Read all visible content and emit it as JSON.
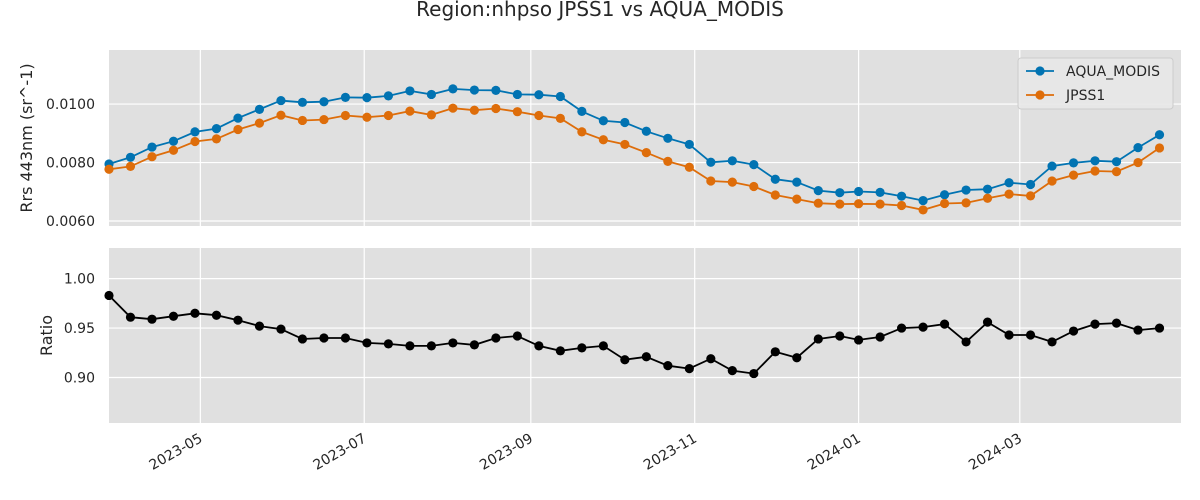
{
  "chart_data": [
    {
      "type": "line",
      "title": "Region:nhpso JPSS1 vs AQUA_MODIS",
      "ylabel": "Rrs 443nm (sr^-1)",
      "xlabel": "",
      "ylim": [
        0.00583,
        0.01185
      ],
      "yticks": [
        "0.0060",
        "0.0080",
        "0.0100"
      ],
      "xlim": [
        "2023-03-28",
        "2024-04-30"
      ],
      "xticks": [
        "2023-05",
        "2023-07",
        "2023-09",
        "2023-11",
        "2024-01",
        "2024-03"
      ],
      "grid": true,
      "legend": "top-right",
      "x": [
        "2023-03-28",
        "2023-04-05",
        "2023-04-13",
        "2023-04-21",
        "2023-04-29",
        "2023-05-07",
        "2023-05-15",
        "2023-05-23",
        "2023-05-31",
        "2023-06-08",
        "2023-06-16",
        "2023-06-24",
        "2023-07-02",
        "2023-07-10",
        "2023-07-18",
        "2023-07-26",
        "2023-08-03",
        "2023-08-11",
        "2023-08-19",
        "2023-08-27",
        "2023-09-04",
        "2023-09-12",
        "2023-09-20",
        "2023-09-28",
        "2023-10-06",
        "2023-10-14",
        "2023-10-22",
        "2023-10-30",
        "2023-11-07",
        "2023-11-15",
        "2023-11-23",
        "2023-12-01",
        "2023-12-09",
        "2023-12-17",
        "2023-12-25",
        "2024-01-01",
        "2024-01-09",
        "2024-01-17",
        "2024-01-25",
        "2024-02-02",
        "2024-02-10",
        "2024-02-18",
        "2024-02-26",
        "2024-03-05",
        "2024-03-13",
        "2024-03-21",
        "2024-03-29",
        "2024-04-06",
        "2024-04-14",
        "2024-04-22"
      ],
      "series": [
        {
          "name": "AQUA_MODIS",
          "color": "#0173b2",
          "values": [
            0.00795,
            0.00818,
            0.00853,
            0.00873,
            0.00905,
            0.00916,
            0.00952,
            0.00982,
            0.01012,
            0.01006,
            0.01008,
            0.01023,
            0.01022,
            0.01028,
            0.01045,
            0.01033,
            0.01052,
            0.01048,
            0.01047,
            0.01033,
            0.01032,
            0.01026,
            0.00975,
            0.00943,
            0.00937,
            0.00907,
            0.00883,
            0.00862,
            0.00801,
            0.00806,
            0.00793,
            0.00743,
            0.00733,
            0.00704,
            0.00697,
            0.00701,
            0.00698,
            0.00685,
            0.0067,
            0.0069,
            0.00706,
            0.00709,
            0.00731,
            0.00725,
            0.00788,
            0.00799,
            0.00806,
            0.00803,
            0.00851,
            0.00895
          ]
        },
        {
          "name": "JPSS1",
          "color": "#de6d0a",
          "values": [
            0.00777,
            0.00787,
            0.0082,
            0.00842,
            0.00872,
            0.00881,
            0.00913,
            0.00935,
            0.00962,
            0.00944,
            0.00947,
            0.00961,
            0.00955,
            0.00961,
            0.00976,
            0.00963,
            0.00986,
            0.00979,
            0.00985,
            0.00974,
            0.00961,
            0.00951,
            0.00905,
            0.00878,
            0.00862,
            0.00834,
            0.00804,
            0.00784,
            0.00737,
            0.00733,
            0.00718,
            0.00689,
            0.00675,
            0.00661,
            0.00658,
            0.00659,
            0.00658,
            0.00653,
            0.00638,
            0.0066,
            0.00662,
            0.00678,
            0.00692,
            0.00686,
            0.00737,
            0.00757,
            0.00771,
            0.00769,
            0.008,
            0.0085
          ]
        }
      ]
    },
    {
      "type": "line",
      "title": "",
      "ylabel": "Ratio",
      "xlabel": "",
      "ylim": [
        0.854,
        1.031
      ],
      "yticks": [
        "0.90",
        "0.95",
        "1.00"
      ],
      "xlim": [
        "2023-03-28",
        "2024-04-30"
      ],
      "xticks": [
        "2023-05",
        "2023-07",
        "2023-09",
        "2023-11",
        "2024-01",
        "2024-03"
      ],
      "grid": true,
      "x": [
        "2023-03-28",
        "2023-04-05",
        "2023-04-13",
        "2023-04-21",
        "2023-04-29",
        "2023-05-07",
        "2023-05-15",
        "2023-05-23",
        "2023-05-31",
        "2023-06-08",
        "2023-06-16",
        "2023-06-24",
        "2023-07-02",
        "2023-07-10",
        "2023-07-18",
        "2023-07-26",
        "2023-08-03",
        "2023-08-11",
        "2023-08-19",
        "2023-08-27",
        "2023-09-04",
        "2023-09-12",
        "2023-09-20",
        "2023-09-28",
        "2023-10-06",
        "2023-10-14",
        "2023-10-22",
        "2023-10-30",
        "2023-11-07",
        "2023-11-15",
        "2023-11-23",
        "2023-12-01",
        "2023-12-09",
        "2023-12-17",
        "2023-12-25",
        "2024-01-01",
        "2024-01-09",
        "2024-01-17",
        "2024-01-25",
        "2024-02-02",
        "2024-02-10",
        "2024-02-18",
        "2024-02-26",
        "2024-03-05",
        "2024-03-13",
        "2024-03-21",
        "2024-03-29",
        "2024-04-06",
        "2024-04-14",
        "2024-04-22"
      ],
      "series": [
        {
          "color": "#000000",
          "values": [
            0.983,
            0.961,
            0.959,
            0.962,
            0.965,
            0.963,
            0.958,
            0.952,
            0.949,
            0.939,
            0.94,
            0.94,
            0.935,
            0.934,
            0.932,
            0.932,
            0.935,
            0.933,
            0.94,
            0.942,
            0.932,
            0.927,
            0.93,
            0.932,
            0.918,
            0.921,
            0.912,
            0.909,
            0.919,
            0.907,
            0.904,
            0.926,
            0.92,
            0.939,
            0.942,
            0.938,
            0.941,
            0.95,
            0.951,
            0.954,
            0.936,
            0.956,
            0.943,
            0.943,
            0.936,
            0.947,
            0.954,
            0.955,
            0.948,
            0.95
          ]
        }
      ]
    }
  ]
}
